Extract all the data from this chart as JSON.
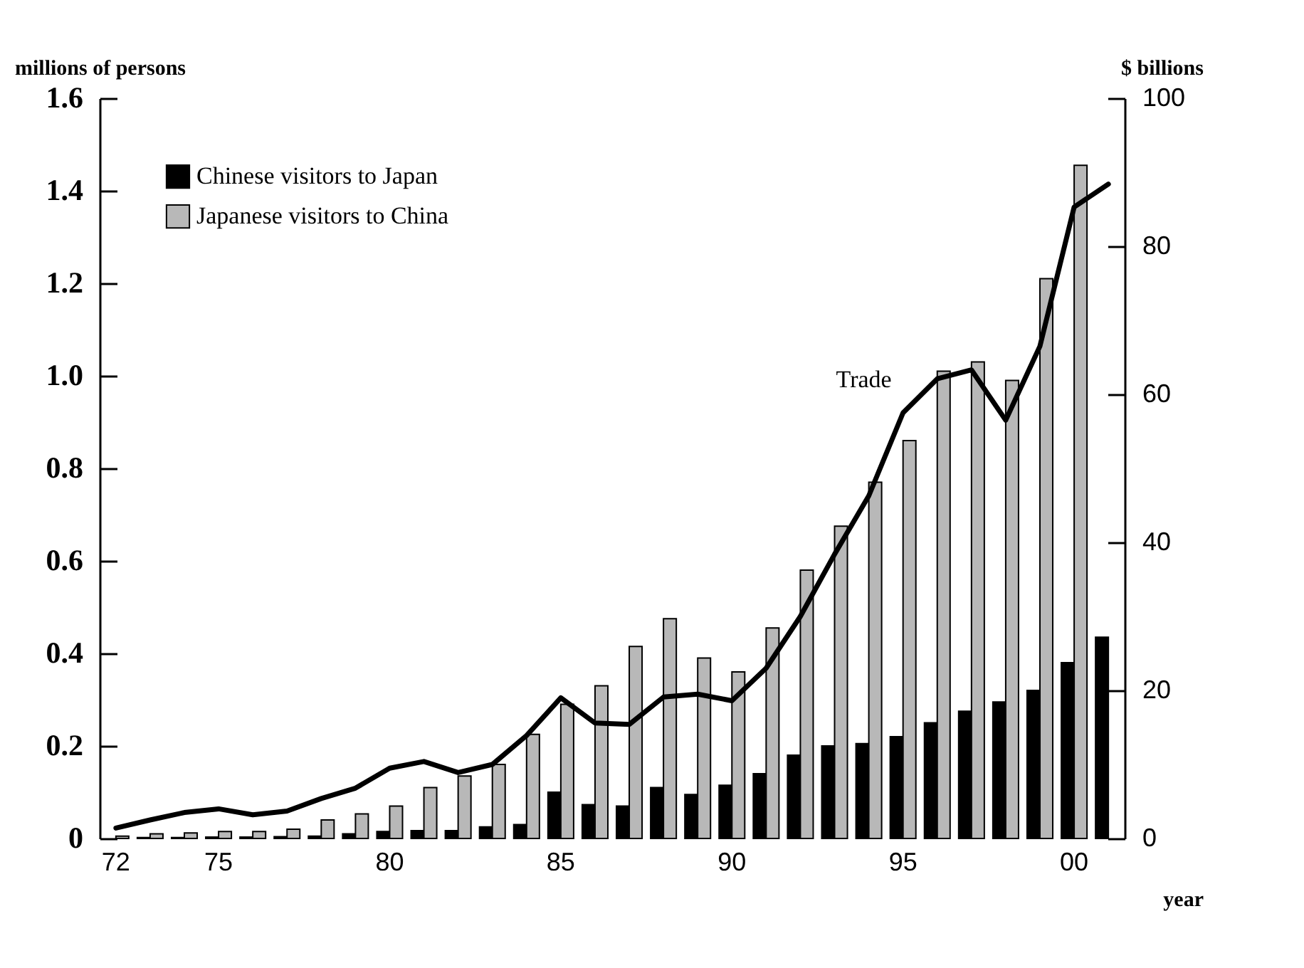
{
  "chart_data": {
    "type": "bar",
    "categories": [
      "72",
      null,
      null,
      "75",
      null,
      null,
      null,
      null,
      "80",
      null,
      null,
      null,
      null,
      "85",
      null,
      null,
      null,
      null,
      "90",
      null,
      null,
      null,
      null,
      "95",
      null,
      null,
      null,
      null,
      "00",
      null
    ],
    "xlabel": "year",
    "ylabel": "millions of persons",
    "y2label": "$ billions",
    "ylim": [
      0,
      1.6
    ],
    "yticks": [
      0,
      0.2,
      0.4,
      0.6,
      0.8,
      {
        "value": 1,
        "label": "1.0"
      },
      1.2,
      1.4,
      1.6
    ],
    "y2lim": [
      0,
      100
    ],
    "y2ticks": [
      0,
      20,
      40,
      60,
      80,
      100
    ],
    "series": [
      {
        "name": "Chinese visitors to Japan",
        "color": "#000000",
        "values": [
          null,
          0.002,
          0.002,
          0.003,
          0.003,
          0.004,
          0.005,
          0.01,
          0.015,
          0.017,
          0.017,
          0.025,
          0.03,
          0.1,
          0.073,
          0.07,
          0.11,
          0.095,
          0.115,
          0.14,
          0.18,
          0.2,
          0.205,
          0.22,
          0.25,
          0.275,
          0.295,
          0.32,
          0.38,
          0.435
        ]
      },
      {
        "name": "Japanese visitors to China",
        "color": "#b8b8b8",
        "values": [
          0.005,
          0.01,
          0.012,
          0.015,
          0.015,
          0.02,
          0.04,
          0.053,
          0.07,
          0.11,
          0.135,
          0.16,
          0.225,
          0.29,
          0.33,
          0.415,
          0.475,
          0.39,
          0.36,
          0.455,
          0.58,
          0.675,
          0.77,
          0.86,
          1.01,
          1.03,
          0.99,
          1.21,
          1.455,
          null
        ]
      },
      {
        "name": "Trade",
        "type": "line",
        "axis": "y2",
        "color": "#000000",
        "values": [
          1.4,
          2.5,
          3.5,
          4.0,
          3.2,
          3.7,
          5.4,
          6.8,
          9.5,
          10.4,
          8.9,
          10.0,
          13.9,
          19.0,
          15.6,
          15.4,
          19.1,
          19.5,
          18.6,
          23,
          30,
          38.4,
          46.3,
          57.5,
          62.1,
          63.3,
          56.5,
          66.5,
          85.3,
          88.4
        ]
      }
    ],
    "legend": "top left",
    "grid": false
  }
}
